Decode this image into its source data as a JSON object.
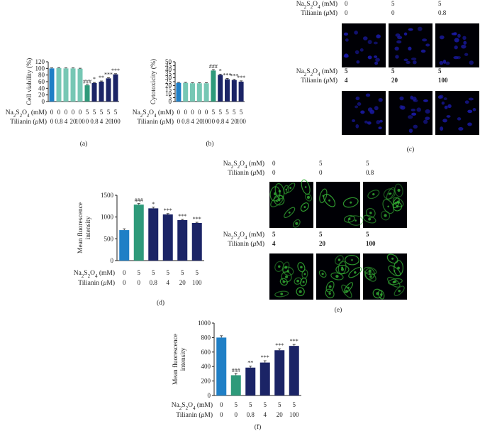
{
  "colors": {
    "control": "#1f7fc6",
    "tilianin_only": "#76c7b4",
    "model": "#2e9a7a",
    "treated": "#1b2466",
    "nucleus": "#1a1aa6",
    "mito": "#35b135"
  },
  "row_labels": {
    "na": [
      "Na",
      "2",
      "S",
      "2",
      "O",
      "4",
      " (mM)"
    ],
    "tilianin": [
      "Tilianin (",
      "μ",
      "M)"
    ]
  },
  "chart_data": [
    {
      "id": "a",
      "type": "bar",
      "panel_label": "(a)",
      "ylabel": "Cell viability (%)",
      "ylim": [
        0,
        120
      ],
      "yticks": [
        0,
        20,
        40,
        60,
        80,
        100,
        120
      ],
      "na_values": [
        "0",
        "0",
        "0",
        "0",
        "0",
        "5",
        "5",
        "5",
        "5",
        "5"
      ],
      "tilianin_values": [
        "0",
        "0.8",
        "4",
        "20",
        "100",
        "0",
        "0.8",
        "4",
        "20",
        "100"
      ],
      "values": [
        100,
        101,
        100,
        100,
        99,
        49,
        56,
        60,
        70,
        82
      ],
      "errors": [
        1.5,
        1.5,
        1.5,
        1.5,
        1.5,
        1.5,
        1.5,
        2,
        2,
        2
      ],
      "colors": [
        "control",
        "tilianin_only",
        "tilianin_only",
        "tilianin_only",
        "tilianin_only",
        "model",
        "treated",
        "treated",
        "treated",
        "treated"
      ],
      "annotations": [
        "",
        "",
        "",
        "",
        "",
        "###",
        "*",
        "**",
        "***",
        "***"
      ]
    },
    {
      "id": "b",
      "type": "bar",
      "panel_label": "(b)",
      "ylabel": "Cytotoxicity (%)",
      "ylim": [
        0,
        50
      ],
      "yticks": [
        0,
        5,
        10,
        15,
        20,
        25,
        30,
        35,
        40,
        45,
        50
      ],
      "na_values": [
        "0",
        "0",
        "0",
        "0",
        "0",
        "5",
        "5",
        "5",
        "5",
        "5"
      ],
      "tilianin_values": [
        "0",
        "0.8",
        "4",
        "20",
        "100",
        "0",
        "0.8",
        "4",
        "20",
        "100"
      ],
      "values": [
        23.5,
        23.5,
        23,
        23,
        23,
        39,
        33.5,
        28,
        27,
        25
      ],
      "errors": [
        0.6,
        0.6,
        0.6,
        0.6,
        0.6,
        1.2,
        1,
        1,
        1,
        1
      ],
      "colors": [
        "control",
        "tilianin_only",
        "tilianin_only",
        "tilianin_only",
        "tilianin_only",
        "model",
        "treated",
        "treated",
        "treated",
        "treated"
      ],
      "annotations": [
        "",
        "",
        "",
        "",
        "",
        "###",
        "*",
        "***",
        "***",
        "***"
      ]
    },
    {
      "id": "d",
      "type": "bar",
      "panel_label": "(d)",
      "ylabel_lines": [
        "Mean fluorescence",
        "intensity"
      ],
      "ylim": [
        0,
        1500
      ],
      "yticks": [
        0,
        500,
        1000,
        1500
      ],
      "na_values": [
        "0",
        "5",
        "5",
        "5",
        "5",
        "5"
      ],
      "tilianin_values": [
        "0",
        "0",
        "0.8",
        "4",
        "20",
        "100"
      ],
      "values": [
        700,
        1285,
        1200,
        1060,
        930,
        865
      ],
      "errors": [
        30,
        25,
        25,
        20,
        15,
        15
      ],
      "colors": [
        "control",
        "model",
        "treated",
        "treated",
        "treated",
        "treated"
      ],
      "annotations": [
        "",
        "###",
        "*",
        "***",
        "***",
        "***"
      ]
    },
    {
      "id": "f",
      "type": "bar",
      "panel_label": "(f)",
      "ylabel_lines": [
        "Mean fluorescence",
        "intensity"
      ],
      "ylim": [
        0,
        1000
      ],
      "yticks": [
        0,
        200,
        400,
        600,
        800,
        1000
      ],
      "na_values": [
        "0",
        "5",
        "5",
        "5",
        "5",
        "5"
      ],
      "tilianin_values": [
        "0",
        "0",
        "0.8",
        "4",
        "20",
        "100"
      ],
      "values": [
        800,
        280,
        385,
        455,
        625,
        685
      ],
      "errors": [
        25,
        25,
        20,
        25,
        20,
        20
      ],
      "colors": [
        "control",
        "model",
        "treated",
        "treated",
        "treated",
        "treated"
      ],
      "annotations": [
        "",
        "###",
        "**",
        "***",
        "***",
        "***"
      ]
    }
  ],
  "image_panels": [
    {
      "id": "c",
      "panel_label": "(c)",
      "stain": "nucleus",
      "rows": [
        {
          "na": [
            "0",
            "5",
            "5"
          ],
          "tilianin": [
            "0",
            "0",
            "0.8"
          ],
          "bold": false
        },
        {
          "na": [
            "5",
            "5",
            "5"
          ],
          "tilianin": [
            "4",
            "20",
            "100"
          ],
          "bold": true
        }
      ]
    },
    {
      "id": "e",
      "panel_label": "(e)",
      "stain": "mito",
      "rows": [
        {
          "na": [
            "0",
            "5",
            "5"
          ],
          "tilianin": [
            "0",
            "0",
            "0.8"
          ],
          "bold": false
        },
        {
          "na": [
            "5",
            "5",
            "5"
          ],
          "tilianin": [
            "4",
            "20",
            "100"
          ],
          "bold": true
        }
      ]
    }
  ]
}
